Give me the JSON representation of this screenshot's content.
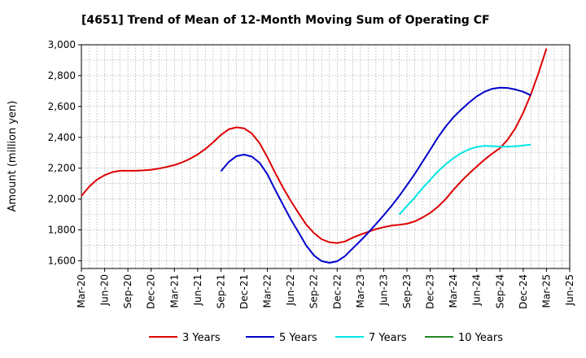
{
  "chart_data": {
    "type": "line",
    "title": "[4651]  Trend of Mean of 12-Month Moving Sum of Operating CF",
    "xlabel": "",
    "ylabel": "Amount (million yen)",
    "ylim": [
      1550,
      3000
    ],
    "yticks": [
      1600,
      1800,
      2000,
      2200,
      2400,
      2600,
      2800,
      3000
    ],
    "ytick_labels": [
      "1,600",
      "1,800",
      "2,000",
      "2,200",
      "2,400",
      "2,600",
      "2,800",
      "3,000"
    ],
    "x_months_range": [
      0,
      60
    ],
    "xticks": [
      {
        "m": 0,
        "label": "Mar-20"
      },
      {
        "m": 3,
        "label": "Jun-20"
      },
      {
        "m": 6,
        "label": "Sep-20"
      },
      {
        "m": 9,
        "label": "Dec-20"
      },
      {
        "m": 12,
        "label": "Mar-21"
      },
      {
        "m": 15,
        "label": "Jun-21"
      },
      {
        "m": 18,
        "label": "Sep-21"
      },
      {
        "m": 21,
        "label": "Dec-21"
      },
      {
        "m": 24,
        "label": "Mar-22"
      },
      {
        "m": 27,
        "label": "Jun-22"
      },
      {
        "m": 30,
        "label": "Sep-22"
      },
      {
        "m": 33,
        "label": "Dec-22"
      },
      {
        "m": 36,
        "label": "Mar-23"
      },
      {
        "m": 39,
        "label": "Jun-23"
      },
      {
        "m": 42,
        "label": "Sep-23"
      },
      {
        "m": 45,
        "label": "Dec-23"
      },
      {
        "m": 48,
        "label": "Mar-24"
      },
      {
        "m": 51,
        "label": "Jun-24"
      },
      {
        "m": 54,
        "label": "Sep-24"
      },
      {
        "m": 57,
        "label": "Dec-24"
      },
      {
        "m": 60,
        "label": "Mar-25"
      },
      {
        "m": 63,
        "label": "Jun-25"
      }
    ],
    "grid": true,
    "legend_position": "bottom",
    "series": [
      {
        "name": "3 Years",
        "color": "#dd0000",
        "points": [
          [
            0,
            2020
          ],
          [
            1,
            2080
          ],
          [
            2,
            2125
          ],
          [
            3,
            2155
          ],
          [
            4,
            2175
          ],
          [
            5,
            2183
          ],
          [
            6,
            2183
          ],
          [
            7,
            2183
          ],
          [
            8,
            2186
          ],
          [
            9,
            2190
          ],
          [
            10,
            2198
          ],
          [
            11,
            2208
          ],
          [
            12,
            2220
          ],
          [
            13,
            2238
          ],
          [
            14,
            2260
          ],
          [
            15,
            2290
          ],
          [
            16,
            2325
          ],
          [
            17,
            2368
          ],
          [
            18,
            2415
          ],
          [
            19,
            2452
          ],
          [
            20,
            2465
          ],
          [
            21,
            2458
          ],
          [
            22,
            2425
          ],
          [
            23,
            2362
          ],
          [
            24,
            2270
          ],
          [
            25,
            2170
          ],
          [
            26,
            2075
          ],
          [
            27,
            1990
          ],
          [
            28,
            1910
          ],
          [
            29,
            1835
          ],
          [
            30,
            1780
          ],
          [
            31,
            1740
          ],
          [
            32,
            1720
          ],
          [
            33,
            1715
          ],
          [
            34,
            1725
          ],
          [
            35,
            1750
          ],
          [
            36,
            1770
          ],
          [
            37,
            1788
          ],
          [
            38,
            1805
          ],
          [
            39,
            1818
          ],
          [
            40,
            1828
          ],
          [
            41,
            1833
          ],
          [
            42,
            1840
          ],
          [
            43,
            1855
          ],
          [
            44,
            1880
          ],
          [
            45,
            1910
          ],
          [
            46,
            1950
          ],
          [
            47,
            2000
          ],
          [
            48,
            2060
          ],
          [
            49,
            2115
          ],
          [
            50,
            2165
          ],
          [
            51,
            2210
          ],
          [
            52,
            2255
          ],
          [
            53,
            2295
          ],
          [
            54,
            2330
          ],
          [
            55,
            2385
          ],
          [
            56,
            2460
          ],
          [
            57,
            2560
          ],
          [
            58,
            2680
          ],
          [
            59,
            2820
          ],
          [
            60,
            2975
          ]
        ]
      },
      {
        "name": "5 Years",
        "color": "#0000cc",
        "points": [
          [
            18,
            2180
          ],
          [
            19,
            2240
          ],
          [
            20,
            2278
          ],
          [
            21,
            2288
          ],
          [
            22,
            2275
          ],
          [
            23,
            2235
          ],
          [
            24,
            2160
          ],
          [
            25,
            2060
          ],
          [
            26,
            1965
          ],
          [
            27,
            1870
          ],
          [
            28,
            1785
          ],
          [
            29,
            1700
          ],
          [
            30,
            1635
          ],
          [
            31,
            1598
          ],
          [
            32,
            1587
          ],
          [
            33,
            1597
          ],
          [
            34,
            1630
          ],
          [
            35,
            1680
          ],
          [
            36,
            1730
          ],
          [
            37,
            1782
          ],
          [
            38,
            1838
          ],
          [
            39,
            1895
          ],
          [
            40,
            1955
          ],
          [
            41,
            2020
          ],
          [
            42,
            2090
          ],
          [
            43,
            2162
          ],
          [
            44,
            2240
          ],
          [
            45,
            2320
          ],
          [
            46,
            2400
          ],
          [
            47,
            2470
          ],
          [
            48,
            2530
          ],
          [
            49,
            2580
          ],
          [
            50,
            2625
          ],
          [
            51,
            2665
          ],
          [
            52,
            2695
          ],
          [
            53,
            2715
          ],
          [
            54,
            2722
          ],
          [
            55,
            2720
          ],
          [
            56,
            2710
          ],
          [
            57,
            2695
          ],
          [
            58,
            2672
          ]
        ],
        "x_offset": 0
      },
      {
        "name": "7 Years",
        "color": "#00e5e5",
        "points": [
          [
            39,
            1900
          ],
          [
            40,
            1955
          ],
          [
            41,
            2010
          ],
          [
            42,
            2070
          ],
          [
            43,
            2125
          ],
          [
            44,
            2180
          ],
          [
            45,
            2225
          ],
          [
            46,
            2265
          ],
          [
            47,
            2298
          ],
          [
            48,
            2322
          ],
          [
            49,
            2338
          ],
          [
            50,
            2345
          ],
          [
            51,
            2343
          ],
          [
            52,
            2340
          ],
          [
            53,
            2340
          ],
          [
            54,
            2342
          ],
          [
            55,
            2348
          ],
          [
            56,
            2352
          ]
        ],
        "x_offset": 2
      },
      {
        "name": "10 Years",
        "color": "#228822",
        "points": []
      }
    ]
  }
}
